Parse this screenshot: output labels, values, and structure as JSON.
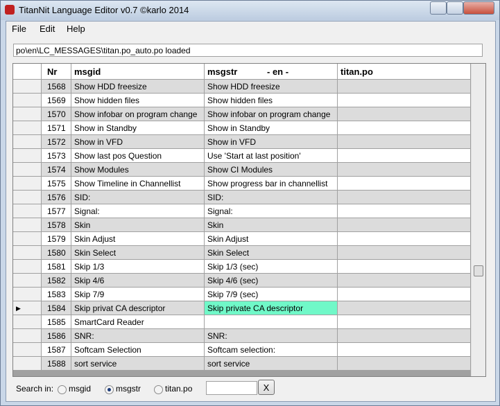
{
  "window": {
    "title": "TitanNit Language Editor v0.7 ©karlo 2014"
  },
  "menu": [
    "File",
    "Edit",
    "Help"
  ],
  "status": "po\\en\\LC_MESSAGES\\titan.po_auto.po loaded",
  "table": {
    "header": {
      "nr": "Nr",
      "msgid": "msgid",
      "msgstr": "msgstr",
      "lang": "- en -",
      "titan": "titan.po"
    },
    "rows": [
      {
        "nr": 1568,
        "msgid": "Show HDD freesize",
        "msgstr": "Show HDD freesize"
      },
      {
        "nr": 1569,
        "msgid": "Show hidden files",
        "msgstr": "Show hidden files"
      },
      {
        "nr": 1570,
        "msgid": "Show infobar on program change",
        "msgstr": "Show infobar on program change"
      },
      {
        "nr": 1571,
        "msgid": "Show in Standby",
        "msgstr": "Show in Standby"
      },
      {
        "nr": 1572,
        "msgid": "Show in VFD",
        "msgstr": "Show in VFD"
      },
      {
        "nr": 1573,
        "msgid": "Show last pos Question",
        "msgstr": "Use 'Start at last position'"
      },
      {
        "nr": 1574,
        "msgid": "Show Modules",
        "msgstr": "Show CI Modules"
      },
      {
        "nr": 1575,
        "msgid": "Show Timeline in Channellist",
        "msgstr": "Show progress bar in channellist"
      },
      {
        "nr": 1576,
        "msgid": "SID:",
        "msgstr": "SID:"
      },
      {
        "nr": 1577,
        "msgid": "Signal:",
        "msgstr": "Signal:"
      },
      {
        "nr": 1578,
        "msgid": "Skin",
        "msgstr": "Skin"
      },
      {
        "nr": 1579,
        "msgid": "Skin Adjust",
        "msgstr": "Skin Adjust"
      },
      {
        "nr": 1580,
        "msgid": "Skin Select",
        "msgstr": "Skin Select"
      },
      {
        "nr": 1581,
        "msgid": "Skip 1/3",
        "msgstr": "Skip 1/3 (sec)"
      },
      {
        "nr": 1582,
        "msgid": "Skip 4/6",
        "msgstr": "Skip 4/6 (sec)"
      },
      {
        "nr": 1583,
        "msgid": "Skip 7/9",
        "msgstr": "Skip 7/9 (sec)"
      },
      {
        "nr": 1584,
        "msgid": "Skip privat CA descriptor",
        "msgstr": "Skip private CA descriptor"
      },
      {
        "nr": 1585,
        "msgid": "SmartCard Reader"
      },
      {
        "nr": 1586,
        "msgid": "SNR:",
        "msgstr": "SNR:"
      },
      {
        "nr": 1587,
        "msgid": "Softcam Selection",
        "msgstr": "Softcam selection:"
      },
      {
        "nr": 1588,
        "msgid": "sort service",
        "msgstr": "sort service"
      }
    ]
  },
  "search": {
    "label": "Search in:",
    "options": [
      "msgid",
      "msgstr",
      "titan.po"
    ],
    "clear_button": "X"
  }
}
